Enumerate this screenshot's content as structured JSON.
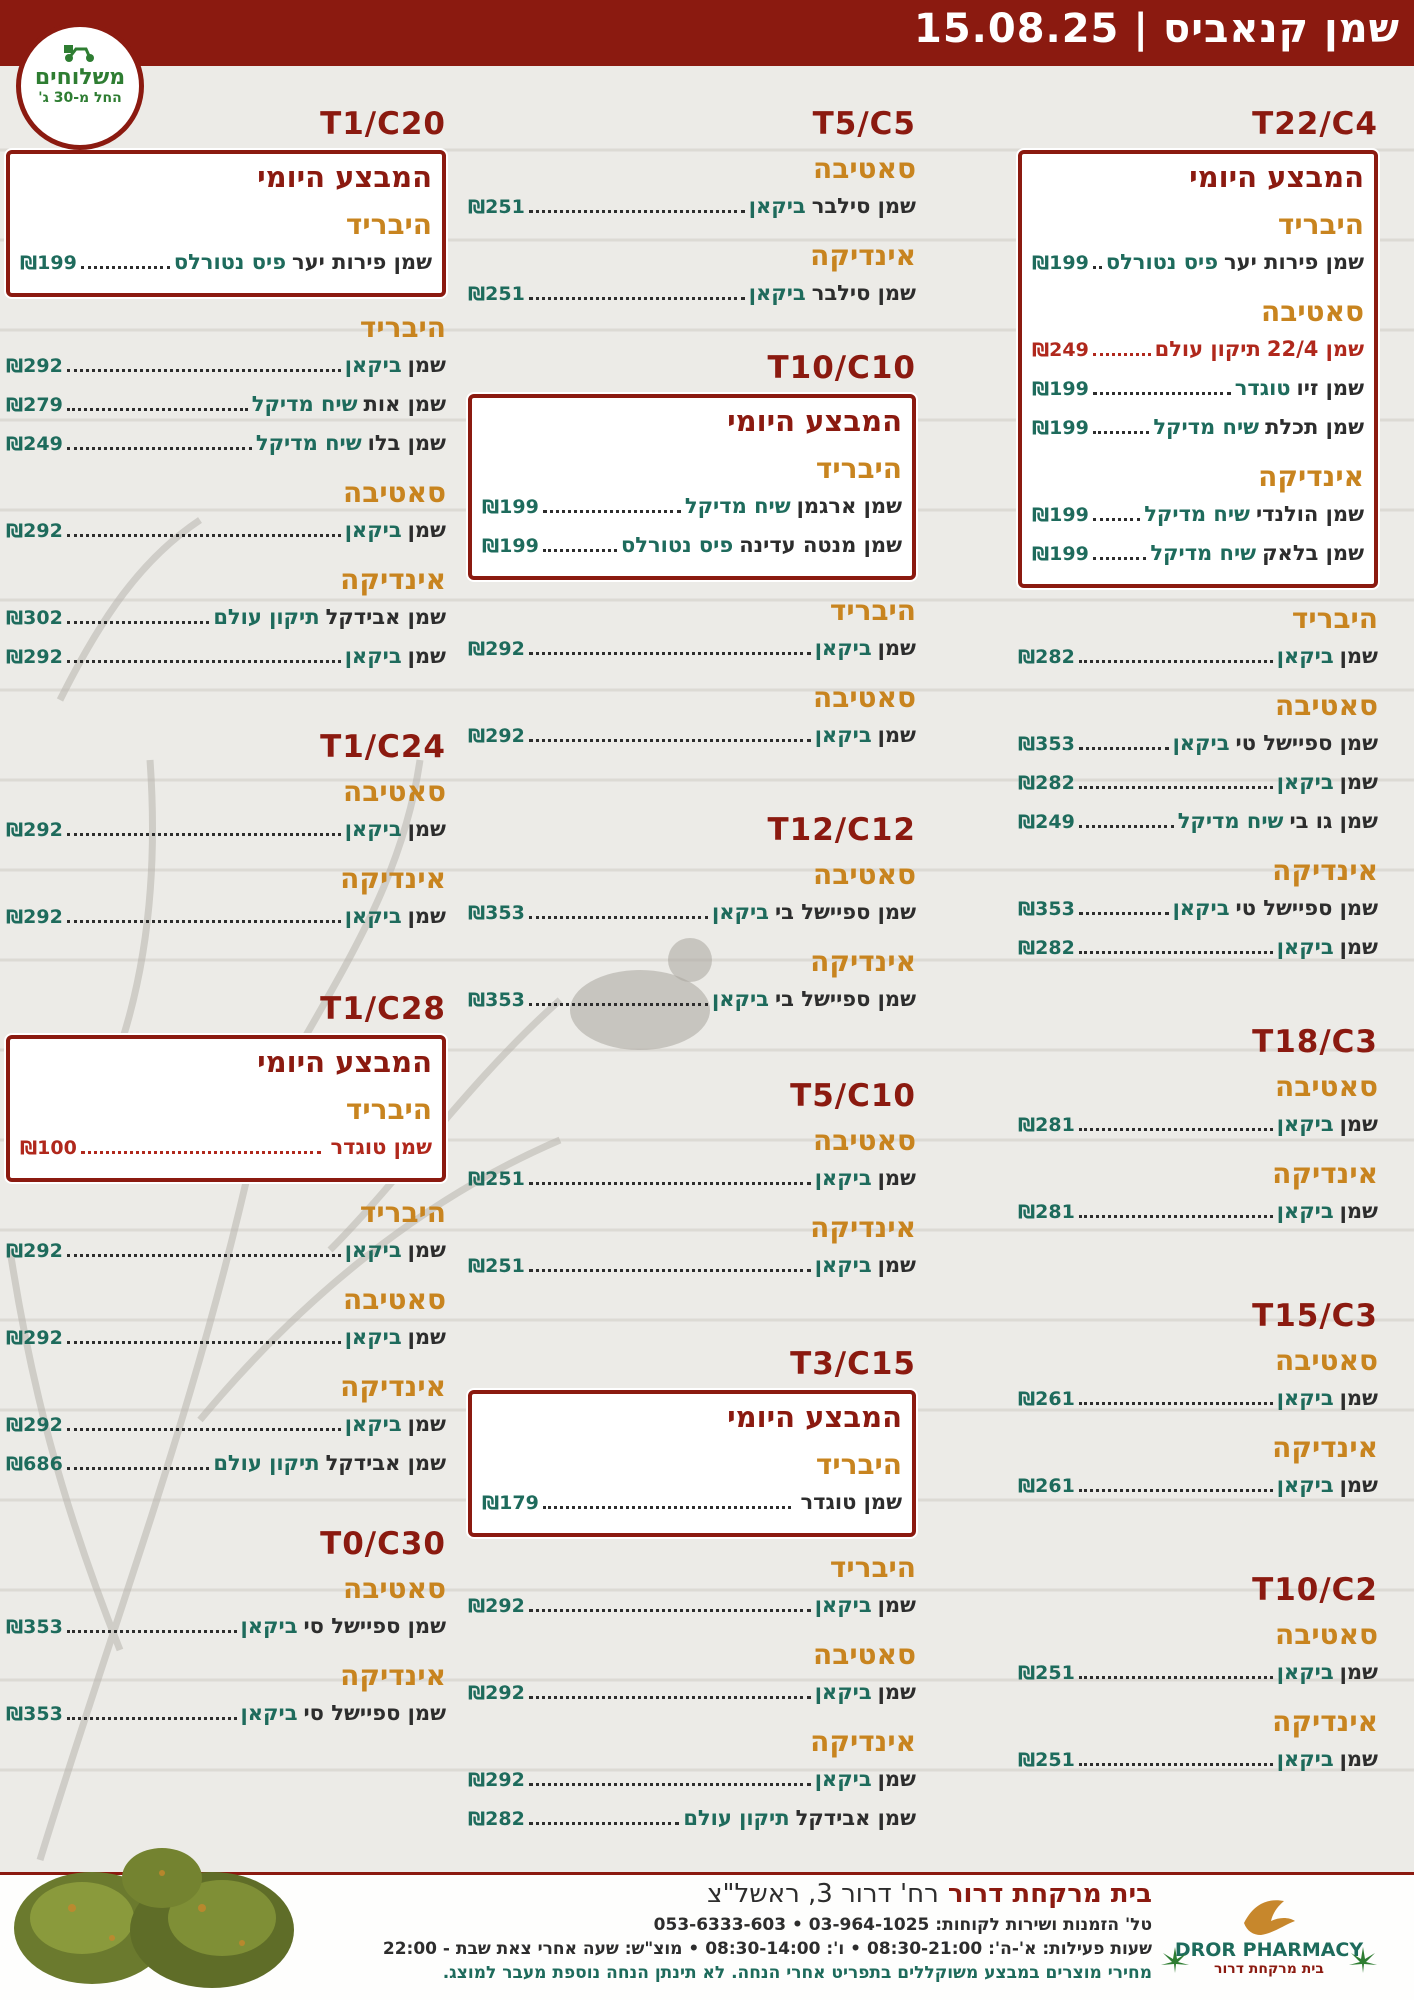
{
  "header": {
    "date": "15.08.25",
    "title": "שמן קנאביס"
  },
  "delivery_badge": {
    "line1": "משלוחים",
    "line2": "החל מ-30 ג'"
  },
  "labels": {
    "daily_deal": "המבצע היומי",
    "hybrid": "היבריד",
    "sativa": "סאטיבה",
    "indica": "אינדיקה"
  },
  "col1": {
    "s1": {
      "title": "T22/C4",
      "deal": {
        "hybrid": [
          {
            "name": "שמן פירות יער",
            "brand": "פיס נטורלס",
            "price": "₪199"
          }
        ],
        "sativa": [
          {
            "name": "שמן 22/4",
            "brand": "תיקון עולם",
            "price": "₪249"
          },
          {
            "name": "שמן זיו",
            "brand": "טוגדר",
            "price": "₪199"
          },
          {
            "name": "שמן תכלת",
            "brand": "שיח מדיקל",
            "price": "₪199"
          }
        ],
        "indica": [
          {
            "name": "שמן הולנדי",
            "brand": "שיח מדיקל",
            "price": "₪199"
          },
          {
            "name": "שמן בלאק",
            "brand": "שיח מדיקל",
            "price": "₪199"
          }
        ]
      },
      "hybrid": [
        {
          "name": "שמן",
          "brand": "ביקאן",
          "price": "₪282"
        }
      ],
      "sativa": [
        {
          "name": "שמן ספיישל טי",
          "brand": "ביקאן",
          "price": "₪353"
        },
        {
          "name": "שמן",
          "brand": "ביקאן",
          "price": "₪282"
        },
        {
          "name": "שמן גו בי",
          "brand": "שיח מדיקל",
          "price": "₪249"
        }
      ],
      "indica": [
        {
          "name": "שמן ספיישל טי",
          "brand": "ביקאן",
          "price": "₪353"
        },
        {
          "name": "שמן",
          "brand": "ביקאן",
          "price": "₪282"
        }
      ]
    },
    "s2": {
      "title": "T18/C3",
      "sativa": [
        {
          "name": "שמן",
          "brand": "ביקאן",
          "price": "₪281"
        }
      ],
      "indica": [
        {
          "name": "שמן",
          "brand": "ביקאן",
          "price": "₪281"
        }
      ]
    },
    "s3": {
      "title": "T15/C3",
      "sativa": [
        {
          "name": "שמן",
          "brand": "ביקאן",
          "price": "₪261"
        }
      ],
      "indica": [
        {
          "name": "שמן",
          "brand": "ביקאן",
          "price": "₪261"
        }
      ]
    },
    "s4": {
      "title": "T10/C2",
      "sativa": [
        {
          "name": "שמן",
          "brand": "ביקאן",
          "price": "₪251"
        }
      ],
      "indica": [
        {
          "name": "שמן",
          "brand": "ביקאן",
          "price": "₪251"
        }
      ]
    }
  },
  "col2": {
    "s1": {
      "title": "T5/C5",
      "sativa": [
        {
          "name": "שמן סילבר",
          "brand": "ביקאן",
          "price": "₪251"
        }
      ],
      "indica": [
        {
          "name": "שמן סילבר",
          "brand": "ביקאן",
          "price": "₪251"
        }
      ]
    },
    "s2": {
      "title": "T10/C10",
      "deal": {
        "hybrid": [
          {
            "name": "שמן ארגמן",
            "brand": "שיח מדיקל",
            "price": "₪199"
          },
          {
            "name": "שמן מנטה עדינה",
            "brand": "פיס נטורלס",
            "price": "₪199"
          }
        ]
      },
      "hybrid": [
        {
          "name": "שמן",
          "brand": "ביקאן",
          "price": "₪292"
        }
      ],
      "sativa": [
        {
          "name": "שמן",
          "brand": "ביקאן",
          "price": "₪292"
        }
      ]
    },
    "s3": {
      "title": "T12/C12",
      "sativa": [
        {
          "name": "שמן ספיישל בי",
          "brand": "ביקאן",
          "price": "₪353"
        }
      ],
      "indica": [
        {
          "name": "שמן ספיישל בי",
          "brand": "ביקאן",
          "price": "₪353"
        }
      ]
    },
    "s4": {
      "title": "T5/C10",
      "sativa": [
        {
          "name": "שמן",
          "brand": "ביקאן",
          "price": "₪251"
        }
      ],
      "indica": [
        {
          "name": "שמן",
          "brand": "ביקאן",
          "price": "₪251"
        }
      ]
    },
    "s5": {
      "title": "T3/C15",
      "deal": {
        "hybrid": [
          {
            "name": "שמן טוגדר",
            "brand": "",
            "price": "₪179"
          }
        ]
      },
      "hybrid": [
        {
          "name": "שמן",
          "brand": "ביקאן",
          "price": "₪292"
        }
      ],
      "sativa": [
        {
          "name": "שמן",
          "brand": "ביקאן",
          "price": "₪292"
        }
      ],
      "indica": [
        {
          "name": "שמן",
          "brand": "ביקאן",
          "price": "₪292"
        },
        {
          "name": "שמן אבידקל",
          "brand": "תיקון עולם",
          "price": "₪282"
        }
      ]
    }
  },
  "col3": {
    "s1": {
      "title": "T1/C20",
      "deal": {
        "hybrid": [
          {
            "name": "שמן פירות יער",
            "brand": "פיס נטורלס",
            "price": "₪199"
          }
        ]
      },
      "hybrid": [
        {
          "name": "שמן",
          "brand": "ביקאן",
          "price": "₪292"
        },
        {
          "name": "שמן אות",
          "brand": "שיח מדיקל",
          "price": "₪279"
        },
        {
          "name": "שמן בלו",
          "brand": "שיח מדיקל",
          "price": "₪249"
        }
      ],
      "sativa": [
        {
          "name": "שמן",
          "brand": "ביקאן",
          "price": "₪292"
        }
      ],
      "indica": [
        {
          "name": "שמן אבידקל",
          "brand": "תיקון עולם",
          "price": "₪302"
        },
        {
          "name": "שמן",
          "brand": "ביקאן",
          "price": "₪292"
        }
      ]
    },
    "s2": {
      "title": "T1/C24",
      "sativa": [
        {
          "name": "שמן",
          "brand": "ביקאן",
          "price": "₪292"
        }
      ],
      "indica": [
        {
          "name": "שמן",
          "brand": "ביקאן",
          "price": "₪292"
        }
      ]
    },
    "s3": {
      "title": "T1/C28",
      "deal": {
        "hybrid": [
          {
            "name": "שמן טוגדר",
            "brand": "",
            "price": "₪100"
          }
        ]
      },
      "hybrid": [
        {
          "name": "שמן",
          "brand": "ביקאן",
          "price": "₪292"
        }
      ],
      "sativa": [
        {
          "name": "שמן",
          "brand": "ביקאן",
          "price": "₪292"
        }
      ],
      "indica": [
        {
          "name": "שמן",
          "brand": "ביקאן",
          "price": "₪292"
        },
        {
          "name": "שמן אבידקל",
          "brand": "תיקון עולם",
          "price": "₪686"
        }
      ]
    },
    "s4": {
      "title": "T0/C30",
      "sativa": [
        {
          "name": "שמן ספיישל סי",
          "brand": "ביקאן",
          "price": "₪353"
        }
      ],
      "indica": [
        {
          "name": "שמן ספיישל סי",
          "brand": "ביקאן",
          "price": "₪353"
        }
      ]
    }
  },
  "footer": {
    "pharmacy_bold": "בית מרקחת דרור",
    "address": "רח' דרור 3, ראשל\"צ",
    "phones": "טל' הזמנות ושירות לקוחות: 03-964-1025 • 053-6333-603",
    "hours": "שעות פעילות: א'-ה': 08:30-21:00 • ו': 08:30-14:00 • מוצ\"ש: שעה אחרי צאת שבת - 22:00",
    "note": "מחירי מוצרים במבצע משוקללים בתפריט אחרי הנחה. לא תינתן הנחה נוספת מעבר למוצג.",
    "logo_en": "DROR PHARMACY",
    "logo_he": "בית מרקחת דרור"
  },
  "colors": {
    "primary": "#8b1a10",
    "category": "#c8841f",
    "brand": "#1e6b5c",
    "highlight": "#b0281c"
  }
}
